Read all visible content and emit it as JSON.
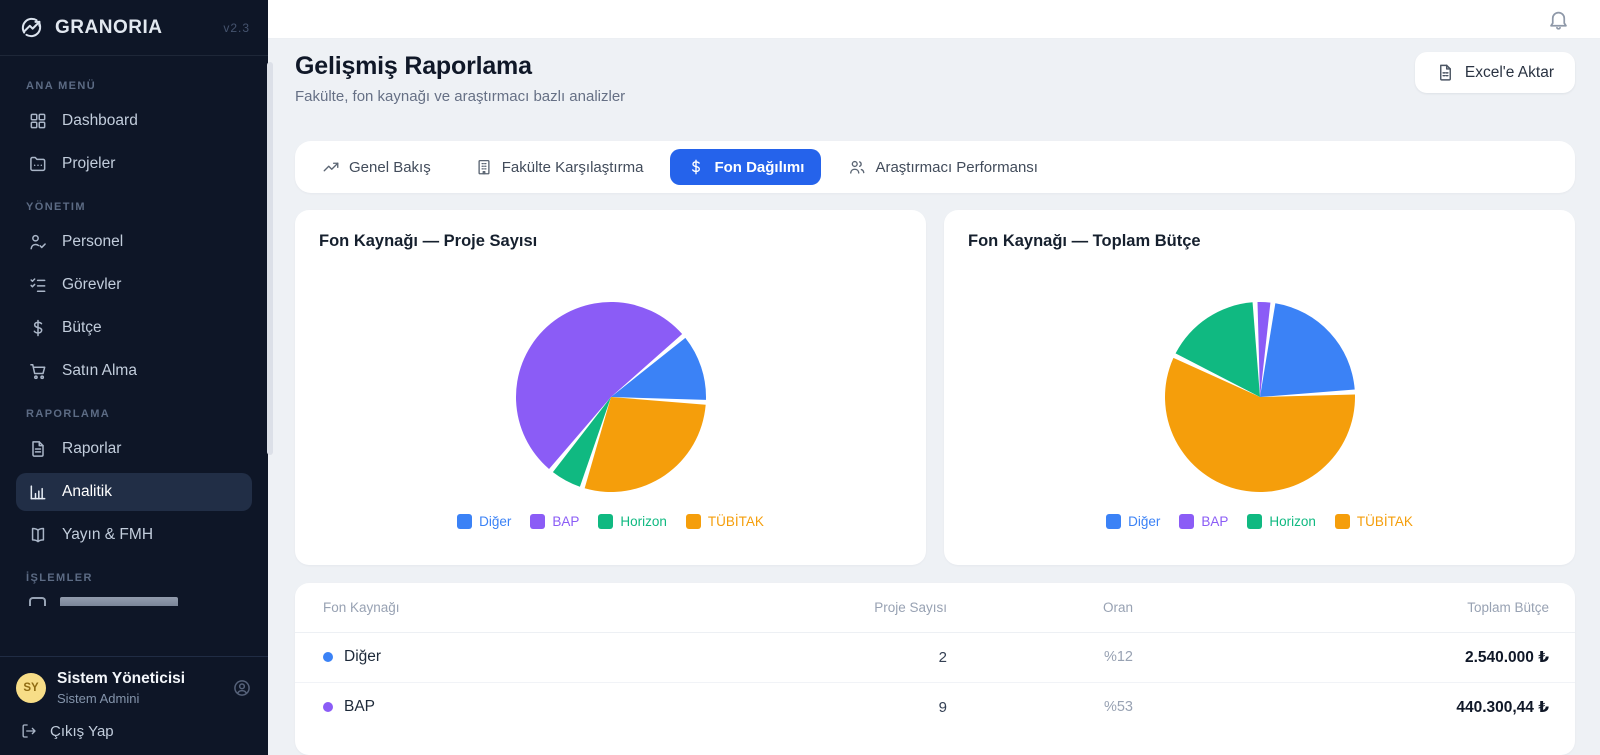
{
  "brand": {
    "name": "GRANORIA",
    "version": "v2.3"
  },
  "sidebar": {
    "sections": [
      {
        "label": "Ana Menü",
        "items": [
          {
            "label": "Dashboard",
            "icon": "grid-icon",
            "active": false
          },
          {
            "label": "Projeler",
            "icon": "folder-icon",
            "active": false
          }
        ]
      },
      {
        "label": "Yönetim",
        "items": [
          {
            "label": "Personel",
            "icon": "user-check-icon",
            "active": false
          },
          {
            "label": "Görevler",
            "icon": "checklist-icon",
            "active": false
          },
          {
            "label": "Bütçe",
            "icon": "dollar-icon",
            "active": false
          },
          {
            "label": "Satın Alma",
            "icon": "cart-icon",
            "active": false
          }
        ]
      },
      {
        "label": "Raporlama",
        "items": [
          {
            "label": "Raporlar",
            "icon": "file-text-icon",
            "active": false
          },
          {
            "label": "Analitik",
            "icon": "bar-chart-icon",
            "active": true
          },
          {
            "label": "Yayın & FMH",
            "icon": "book-open-icon",
            "active": false
          }
        ]
      },
      {
        "label": "İşlemler",
        "items": []
      }
    ],
    "user": {
      "initials": "SY",
      "name": "Sistem Yöneticisi",
      "role": "Sistem Admini",
      "logout_label": "Çıkış Yap"
    }
  },
  "header": {
    "title": "Gelişmiş Raporlama",
    "subtitle": "Fakülte, fon kaynağı ve araştırmacı bazlı analizler",
    "export_label": "Excel'e Aktar"
  },
  "tabs": [
    {
      "label": "Genel Bakış",
      "icon": "trending-up-icon",
      "active": false
    },
    {
      "label": "Fakülte Karşılaştırma",
      "icon": "building-icon",
      "active": false
    },
    {
      "label": "Fon Dağılımı",
      "icon": "dollar-icon",
      "active": true
    },
    {
      "label": "Araştırmacı Performansı",
      "icon": "users-icon",
      "active": false
    }
  ],
  "accent_color": "#2563eb",
  "chart_data": [
    {
      "type": "pie",
      "title": "Fon Kaynağı — Proje Sayısı",
      "labels": [
        "Diğer",
        "BAP",
        "Horizon",
        "TÜBİTAK"
      ],
      "values_pct": [
        12,
        53,
        6,
        29
      ],
      "colors": [
        "#3b82f6",
        "#8b5cf6",
        "#10b981",
        "#f59e0b"
      ],
      "legend_position": "bottom",
      "draw": {
        "start_angle": 50,
        "order": [
          0,
          3,
          2,
          1
        ]
      }
    },
    {
      "type": "pie",
      "title": "Fon Kaynağı — Toplam Bütçe",
      "labels": [
        "Diğer",
        "BAP",
        "Horizon",
        "TÜBİTAK"
      ],
      "values_pct": [
        22,
        3,
        17,
        58
      ],
      "colors": [
        "#3b82f6",
        "#8b5cf6",
        "#10b981",
        "#f59e0b"
      ],
      "visible_values": {
        "Diğer": "2.540.000 ₺",
        "BAP": "440.300,44 ₺"
      },
      "legend_position": "bottom",
      "draw": {
        "start_angle": -3,
        "order": [
          1,
          0,
          3,
          2
        ]
      }
    }
  ],
  "table": {
    "columns": [
      "Fon Kaynağı",
      "Proje Sayısı",
      "Oran",
      "Toplam Bütçe"
    ],
    "rows": [
      {
        "name": "Diğer",
        "color": "#3b82f6",
        "count": "2",
        "share": "%12",
        "budget": "2.540.000 ₺"
      },
      {
        "name": "BAP",
        "color": "#8b5cf6",
        "count": "9",
        "share": "%53",
        "budget": "440.300,44 ₺"
      }
    ]
  }
}
